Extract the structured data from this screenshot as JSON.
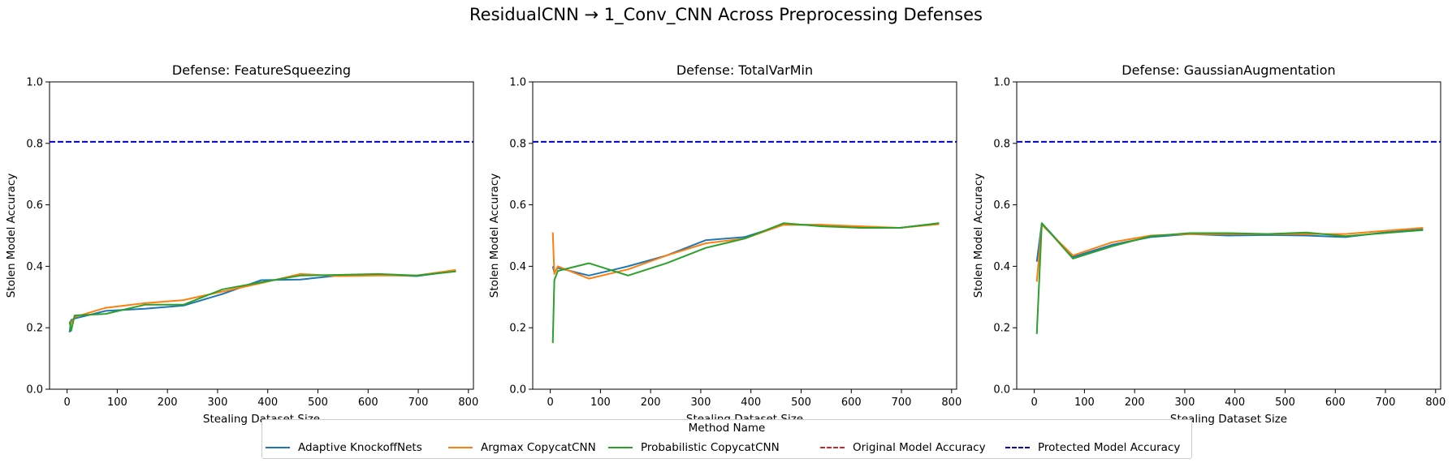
{
  "figure": {
    "title": "ResidualCNN → 1_Conv_CNN Across Preprocessing Defenses"
  },
  "legend": {
    "title": "Method Name",
    "items": [
      {
        "label": "Adaptive KnockoffNets",
        "color": "#1f77b4",
        "style": "solid"
      },
      {
        "label": "Argmax CopycatCNN",
        "color": "#ff7f0e",
        "style": "solid"
      },
      {
        "label": "Probabilistic CopycatCNN",
        "color": "#2ca02c",
        "style": "solid"
      },
      {
        "label": "Original Model Accuracy",
        "color": "#d62728",
        "style": "dashed"
      },
      {
        "label": "Protected Model Accuracy",
        "color": "#0000cc",
        "style": "dashed"
      }
    ],
    "placement": "bottom-center"
  },
  "chart_data": [
    {
      "type": "line",
      "title": "Defense: FeatureSqueezing",
      "xlabel": "Stealing Dataset Size",
      "ylabel": "Stolen Model Accuracy",
      "xlim": [
        -35,
        810
      ],
      "ylim": [
        0.0,
        1.0
      ],
      "xticks": [
        0,
        100,
        200,
        300,
        400,
        500,
        600,
        700,
        800
      ],
      "yticks": [
        0.0,
        0.2,
        0.4,
        0.6,
        0.8,
        1.0
      ],
      "protected_accuracy": 0.805,
      "series": [
        {
          "name": "Adaptive KnockoffNets",
          "color": "#1f77b4",
          "x": [
            5,
            8,
            15,
            77,
            155,
            232,
            310,
            387,
            465,
            542,
            620,
            697,
            775
          ],
          "y": [
            0.185,
            0.225,
            0.23,
            0.255,
            0.262,
            0.272,
            0.31,
            0.355,
            0.357,
            0.37,
            0.372,
            0.368,
            0.385
          ]
        },
        {
          "name": "Argmax CopycatCNN",
          "color": "#ff7f0e",
          "x": [
            5,
            8,
            15,
            77,
            155,
            232,
            310,
            387,
            465,
            542,
            620,
            697,
            775
          ],
          "y": [
            0.21,
            0.215,
            0.235,
            0.265,
            0.28,
            0.29,
            0.318,
            0.345,
            0.375,
            0.368,
            0.37,
            0.37,
            0.388
          ]
        },
        {
          "name": "Probabilistic CopycatCNN",
          "color": "#2ca02c",
          "x": [
            5,
            8,
            15,
            77,
            155,
            232,
            310,
            387,
            465,
            542,
            620,
            697,
            775
          ],
          "y": [
            0.22,
            0.19,
            0.24,
            0.245,
            0.275,
            0.275,
            0.325,
            0.348,
            0.37,
            0.372,
            0.375,
            0.37,
            0.383
          ]
        }
      ]
    },
    {
      "type": "line",
      "title": "Defense: TotalVarMin",
      "xlabel": "Stealing Dataset Size",
      "ylabel": "Stolen Model Accuracy",
      "xlim": [
        -35,
        810
      ],
      "ylim": [
        0.0,
        1.0
      ],
      "xticks": [
        0,
        100,
        200,
        300,
        400,
        500,
        600,
        700,
        800
      ],
      "yticks": [
        0.0,
        0.2,
        0.4,
        0.6,
        0.8,
        1.0
      ],
      "protected_accuracy": 0.805,
      "series": [
        {
          "name": "Adaptive KnockoffNets",
          "color": "#1f77b4",
          "x": [
            5,
            8,
            15,
            77,
            155,
            232,
            310,
            387,
            465,
            542,
            620,
            697,
            775
          ],
          "y": [
            0.4,
            0.38,
            0.395,
            0.37,
            0.4,
            0.435,
            0.485,
            0.495,
            0.535,
            0.535,
            0.525,
            0.525,
            0.54
          ]
        },
        {
          "name": "Argmax CopycatCNN",
          "color": "#ff7f0e",
          "x": [
            5,
            8,
            15,
            77,
            155,
            232,
            310,
            387,
            465,
            542,
            620,
            697,
            775
          ],
          "y": [
            0.51,
            0.375,
            0.4,
            0.36,
            0.39,
            0.435,
            0.475,
            0.49,
            0.535,
            0.535,
            0.53,
            0.525,
            0.537
          ]
        },
        {
          "name": "Probabilistic CopycatCNN",
          "color": "#2ca02c",
          "x": [
            5,
            8,
            15,
            77,
            155,
            232,
            310,
            387,
            465,
            542,
            620,
            697,
            775
          ],
          "y": [
            0.15,
            0.355,
            0.385,
            0.41,
            0.37,
            0.41,
            0.46,
            0.49,
            0.54,
            0.53,
            0.525,
            0.525,
            0.54
          ]
        }
      ]
    },
    {
      "type": "line",
      "title": "Defense: GaussianAugmentation",
      "xlabel": "Stealing Dataset Size",
      "ylabel": "Stolen Model Accuracy",
      "xlim": [
        -35,
        810
      ],
      "ylim": [
        0.0,
        1.0
      ],
      "xticks": [
        0,
        100,
        200,
        300,
        400,
        500,
        600,
        700,
        800
      ],
      "yticks": [
        0.0,
        0.2,
        0.4,
        0.6,
        0.8,
        1.0
      ],
      "protected_accuracy": 0.805,
      "series": [
        {
          "name": "Adaptive KnockoffNets",
          "color": "#1f77b4",
          "x": [
            5,
            15,
            77,
            155,
            232,
            310,
            387,
            465,
            542,
            620,
            697,
            775
          ],
          "y": [
            0.415,
            0.54,
            0.43,
            0.47,
            0.495,
            0.505,
            0.5,
            0.502,
            0.5,
            0.495,
            0.51,
            0.52
          ]
        },
        {
          "name": "Argmax CopycatCNN",
          "color": "#ff7f0e",
          "x": [
            5,
            15,
            77,
            155,
            232,
            310,
            387,
            465,
            542,
            620,
            697,
            775
          ],
          "y": [
            0.35,
            0.535,
            0.435,
            0.478,
            0.5,
            0.505,
            0.505,
            0.505,
            0.505,
            0.505,
            0.515,
            0.525
          ]
        },
        {
          "name": "Probabilistic CopycatCNN",
          "color": "#2ca02c",
          "x": [
            5,
            15,
            77,
            155,
            232,
            310,
            387,
            465,
            542,
            620,
            697,
            775
          ],
          "y": [
            0.18,
            0.54,
            0.425,
            0.465,
            0.498,
            0.508,
            0.508,
            0.505,
            0.51,
            0.498,
            0.508,
            0.518
          ]
        }
      ]
    }
  ]
}
